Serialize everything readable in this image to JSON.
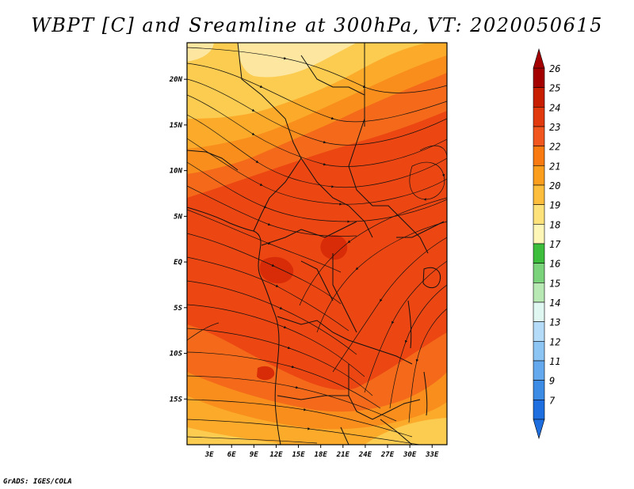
{
  "title": "WBPT [C] and Sreamline at 300hPa, VT: 2020050615",
  "credit": "GrADS: IGES/COLA",
  "map": {
    "lon_range": [
      0,
      35
    ],
    "lat_range": [
      -20,
      24
    ],
    "lat_labels": [
      {
        "lat": 20,
        "label": "20N"
      },
      {
        "lat": 15,
        "label": "15N"
      },
      {
        "lat": 10,
        "label": "10N"
      },
      {
        "lat": 5,
        "label": "5N"
      },
      {
        "lat": 0,
        "label": "EQ"
      },
      {
        "lat": -5,
        "label": "5S"
      },
      {
        "lat": -10,
        "label": "10S"
      },
      {
        "lat": -15,
        "label": "15S"
      }
    ],
    "lon_labels": [
      {
        "lon": 3,
        "label": "3E"
      },
      {
        "lon": 6,
        "label": "6E"
      },
      {
        "lon": 9,
        "label": "9E"
      },
      {
        "lon": 12,
        "label": "12E"
      },
      {
        "lon": 15,
        "label": "15E"
      },
      {
        "lon": 18,
        "label": "18E"
      },
      {
        "lon": 21,
        "label": "21E"
      },
      {
        "lon": 24,
        "label": "24E"
      },
      {
        "lon": 27,
        "label": "27E"
      },
      {
        "lon": 30,
        "label": "30E"
      },
      {
        "lon": 33,
        "label": "33E"
      }
    ]
  },
  "colorbar": {
    "levels": [
      {
        "label": "26",
        "color": "#a50000"
      },
      {
        "label": "25",
        "color": "#c81e00"
      },
      {
        "label": "24",
        "color": "#e03a0e"
      },
      {
        "label": "23",
        "color": "#f0561e"
      },
      {
        "label": "22",
        "color": "#f97a10"
      },
      {
        "label": "21",
        "color": "#fb9e1e"
      },
      {
        "label": "20",
        "color": "#fcbe3c"
      },
      {
        "label": "19",
        "color": "#fde17a"
      },
      {
        "label": "18",
        "color": "#fdf6b6"
      },
      {
        "label": "17",
        "color": "#3cbe3c"
      },
      {
        "label": "16",
        "color": "#7ad27a"
      },
      {
        "label": "15",
        "color": "#b8e8b4"
      },
      {
        "label": "14",
        "color": "#e0f6f0"
      },
      {
        "label": "13",
        "color": "#b4dcf8"
      },
      {
        "label": "12",
        "color": "#8cc4f4"
      },
      {
        "label": "11",
        "color": "#64a8ee"
      },
      {
        "label": "9",
        "color": "#3c8ce6"
      },
      {
        "label": "7",
        "color": "#1e6ee0"
      }
    ],
    "bottom_color": "#1e6ee0",
    "top_color": "#a50000"
  },
  "field_colors": {
    "c25": "#d82c08",
    "c24": "#ec4612",
    "c23": "#f46a1a",
    "c22": "#f98e1c",
    "c21": "#fbaa2a",
    "c20": "#fccc50",
    "c19": "#fde7a0"
  }
}
